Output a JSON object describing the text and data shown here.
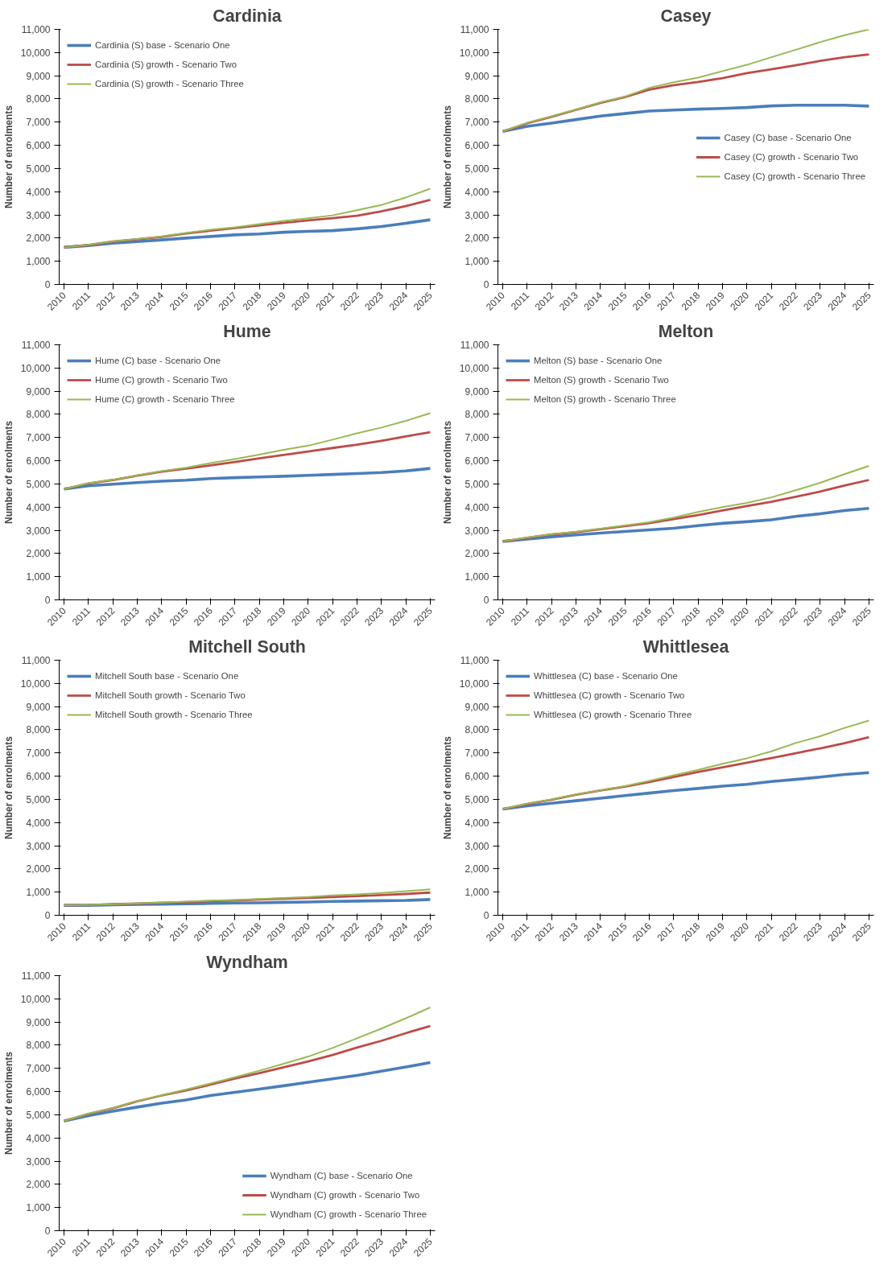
{
  "chart_data": [
    {
      "type": "line",
      "title": "Cardinia",
      "ylabel": "Number of enrolments",
      "legend": "top left",
      "grid": false,
      "categories": [
        "2010",
        "2011",
        "2012",
        "2013",
        "2014",
        "2015",
        "2016",
        "2017",
        "2018",
        "2019",
        "2020",
        "2021",
        "2022",
        "2023",
        "2024",
        "2025"
      ],
      "ylim": [
        0,
        11000
      ],
      "yticks": [
        0,
        {
          "value": 1000,
          "label": "1,000"
        },
        {
          "value": 2000,
          "label": "2,000"
        },
        {
          "value": 3000,
          "label": "3,000"
        },
        {
          "value": 4000,
          "label": "4,000"
        },
        {
          "value": 5000,
          "label": "5,000"
        },
        {
          "value": 6000,
          "label": "6,000"
        },
        {
          "value": 7000,
          "label": "7,000"
        },
        {
          "value": 8000,
          "label": "8,000"
        },
        {
          "value": 9000,
          "label": "9,000"
        },
        {
          "value": 10000,
          "label": "10,000"
        },
        {
          "value": 11000,
          "label": "11,000"
        }
      ],
      "series": [
        {
          "name": "Cardinia (S) base - Scenario One",
          "color": "#4a7ebb",
          "values": [
            1600,
            1680,
            1780,
            1850,
            1920,
            2000,
            2070,
            2140,
            2180,
            2250,
            2290,
            2320,
            2400,
            2500,
            2640,
            2790
          ]
        },
        {
          "name": "Cardinia (S) growth - Scenario Two",
          "color": "#be4b48",
          "values": [
            1600,
            1700,
            1850,
            1950,
            2050,
            2200,
            2320,
            2430,
            2550,
            2660,
            2760,
            2860,
            2960,
            3150,
            3380,
            3650
          ]
        },
        {
          "name": "Cardinia (S) growth - Scenario Three",
          "color": "#98b954",
          "values": [
            1600,
            1710,
            1860,
            1960,
            2070,
            2220,
            2360,
            2460,
            2600,
            2740,
            2850,
            2980,
            3200,
            3430,
            3750,
            4130
          ]
        }
      ]
    },
    {
      "type": "line",
      "title": "Casey",
      "ylabel": "Number of enrolments",
      "legend": "right",
      "grid": false,
      "categories": [
        "2010",
        "2011",
        "2012",
        "2013",
        "2014",
        "2015",
        "2016",
        "2017",
        "2018",
        "2019",
        "2020",
        "2021",
        "2022",
        "2023",
        "2024",
        "2025"
      ],
      "ylim": [
        0,
        11000
      ],
      "yticks": [
        0,
        {
          "value": 1000,
          "label": "1,000"
        },
        {
          "value": 2000,
          "label": "2,000"
        },
        {
          "value": 3000,
          "label": "3,000"
        },
        {
          "value": 4000,
          "label": "4,000"
        },
        {
          "value": 5000,
          "label": "5,000"
        },
        {
          "value": 6000,
          "label": "6,000"
        },
        {
          "value": 7000,
          "label": "7,000"
        },
        {
          "value": 8000,
          "label": "8,000"
        },
        {
          "value": 9000,
          "label": "9,000"
        },
        {
          "value": 10000,
          "label": "10,000"
        },
        {
          "value": 11000,
          "label": "11,000"
        }
      ],
      "series": [
        {
          "name": "Casey (C) base - Scenario One",
          "color": "#4a7ebb",
          "values": [
            6600,
            6820,
            6960,
            7110,
            7260,
            7370,
            7480,
            7520,
            7560,
            7590,
            7630,
            7700,
            7730,
            7730,
            7730,
            7690
          ]
        },
        {
          "name": "Casey (C) growth - Scenario Two",
          "color": "#be4b48",
          "values": [
            6600,
            6950,
            7230,
            7530,
            7830,
            8080,
            8400,
            8590,
            8730,
            8900,
            9110,
            9280,
            9450,
            9640,
            9800,
            9920
          ]
        },
        {
          "name": "Casey (C) growth - Scenario Three",
          "color": "#98b954",
          "values": [
            6600,
            6970,
            7250,
            7550,
            7850,
            8100,
            8480,
            8720,
            8920,
            9200,
            9470,
            9800,
            10120,
            10450,
            10750,
            11000
          ]
        }
      ]
    },
    {
      "type": "line",
      "title": "Hume",
      "ylabel": "Number of enrolments",
      "legend": "top left",
      "grid": false,
      "categories": [
        "2010",
        "2011",
        "2012",
        "2013",
        "2014",
        "2015",
        "2016",
        "2017",
        "2018",
        "2019",
        "2020",
        "2021",
        "2022",
        "2023",
        "2024",
        "2025"
      ],
      "ylim": [
        0,
        11000
      ],
      "yticks": [
        0,
        {
          "value": 1000,
          "label": "1,000"
        },
        {
          "value": 2000,
          "label": "2,000"
        },
        {
          "value": 3000,
          "label": "3,000"
        },
        {
          "value": 4000,
          "label": "4,000"
        },
        {
          "value": 5000,
          "label": "5,000"
        },
        {
          "value": 6000,
          "label": "6,000"
        },
        {
          "value": 7000,
          "label": "7,000"
        },
        {
          "value": 8000,
          "label": "8,000"
        },
        {
          "value": 9000,
          "label": "9,000"
        },
        {
          "value": 10000,
          "label": "10,000"
        },
        {
          "value": 11000,
          "label": "11,000"
        }
      ],
      "series": [
        {
          "name": "Hume (C) base - Scenario One",
          "color": "#4a7ebb",
          "values": [
            4780,
            4920,
            4990,
            5060,
            5120,
            5160,
            5230,
            5270,
            5300,
            5330,
            5370,
            5410,
            5450,
            5490,
            5560,
            5670
          ]
        },
        {
          "name": "Hume (C) growth - Scenario Two",
          "color": "#be4b48",
          "values": [
            4780,
            5020,
            5170,
            5360,
            5530,
            5660,
            5800,
            5950,
            6100,
            6250,
            6400,
            6550,
            6690,
            6860,
            7050,
            7230
          ]
        },
        {
          "name": "Hume (C) growth - Scenario Three",
          "color": "#98b954",
          "values": [
            4780,
            5030,
            5180,
            5370,
            5550,
            5700,
            5900,
            6070,
            6260,
            6470,
            6650,
            6910,
            7180,
            7430,
            7720,
            8050
          ]
        }
      ]
    },
    {
      "type": "line",
      "title": "Melton",
      "ylabel": "Number of enrolments",
      "legend": "top left",
      "grid": false,
      "categories": [
        "2010",
        "2011",
        "2012",
        "2013",
        "2014",
        "2015",
        "2016",
        "2017",
        "2018",
        "2019",
        "2020",
        "2021",
        "2022",
        "2023",
        "2024",
        "2025"
      ],
      "ylim": [
        0,
        11000
      ],
      "yticks": [
        0,
        {
          "value": 1000,
          "label": "1,000"
        },
        {
          "value": 2000,
          "label": "2,000"
        },
        {
          "value": 3000,
          "label": "3,000"
        },
        {
          "value": 4000,
          "label": "4,000"
        },
        {
          "value": 5000,
          "label": "5,000"
        },
        {
          "value": 6000,
          "label": "6,000"
        },
        {
          "value": 7000,
          "label": "7,000"
        },
        {
          "value": 8000,
          "label": "8,000"
        },
        {
          "value": 9000,
          "label": "9,000"
        },
        {
          "value": 10000,
          "label": "10,000"
        },
        {
          "value": 11000,
          "label": "11,000"
        }
      ],
      "series": [
        {
          "name": "Melton (S) base - Scenario One",
          "color": "#4a7ebb",
          "values": [
            2520,
            2620,
            2720,
            2800,
            2880,
            2950,
            3020,
            3090,
            3200,
            3300,
            3370,
            3450,
            3600,
            3710,
            3850,
            3950
          ]
        },
        {
          "name": "Melton (S) growth - Scenario Two",
          "color": "#be4b48",
          "values": [
            2520,
            2680,
            2820,
            2920,
            3050,
            3180,
            3310,
            3480,
            3660,
            3860,
            4050,
            4230,
            4450,
            4670,
            4930,
            5170
          ]
        },
        {
          "name": "Melton (S) growth - Scenario Three",
          "color": "#98b954",
          "values": [
            2520,
            2690,
            2830,
            2940,
            3070,
            3210,
            3350,
            3550,
            3790,
            4000,
            4180,
            4420,
            4730,
            5050,
            5420,
            5780
          ]
        }
      ]
    },
    {
      "type": "line",
      "title": "Mitchell South",
      "ylabel": "Number of enrolments",
      "legend": "top left",
      "grid": false,
      "categories": [
        "2010",
        "2011",
        "2012",
        "2013",
        "2014",
        "2015",
        "2016",
        "2017",
        "2018",
        "2019",
        "2020",
        "2021",
        "2022",
        "2023",
        "2024",
        "2025"
      ],
      "ylim": [
        0,
        11000
      ],
      "yticks": [
        0,
        {
          "value": 1000,
          "label": "1,000"
        },
        {
          "value": 2000,
          "label": "2,000"
        },
        {
          "value": 3000,
          "label": "3,000"
        },
        {
          "value": 4000,
          "label": "4,000"
        },
        {
          "value": 5000,
          "label": "5,000"
        },
        {
          "value": 6000,
          "label": "6,000"
        },
        {
          "value": 7000,
          "label": "7,000"
        },
        {
          "value": 8000,
          "label": "8,000"
        },
        {
          "value": 9000,
          "label": "9,000"
        },
        {
          "value": 10000,
          "label": "10,000"
        },
        {
          "value": 11000,
          "label": "11,000"
        }
      ],
      "series": [
        {
          "name": "Mitchell South base - Scenario One",
          "color": "#4a7ebb",
          "values": [
            430,
            430,
            450,
            470,
            480,
            500,
            510,
            530,
            540,
            560,
            570,
            600,
            610,
            630,
            640,
            680
          ]
        },
        {
          "name": "Mitchell South growth - Scenario Two",
          "color": "#be4b48",
          "values": [
            430,
            440,
            480,
            510,
            540,
            570,
            610,
            640,
            680,
            720,
            750,
            790,
            830,
            870,
            920,
            980
          ]
        },
        {
          "name": "Mitchell South growth - Scenario Three",
          "color": "#98b954",
          "values": [
            430,
            440,
            480,
            510,
            550,
            590,
            630,
            660,
            700,
            750,
            790,
            860,
            900,
            960,
            1040,
            1120
          ]
        }
      ]
    },
    {
      "type": "line",
      "title": "Whittlesea",
      "ylabel": "Number of enrolments",
      "legend": "top left",
      "grid": false,
      "categories": [
        "2010",
        "2011",
        "2012",
        "2013",
        "2014",
        "2015",
        "2016",
        "2017",
        "2018",
        "2019",
        "2020",
        "2021",
        "2022",
        "2023",
        "2024",
        "2025"
      ],
      "ylim": [
        0,
        11000
      ],
      "yticks": [
        0,
        {
          "value": 1000,
          "label": "1,000"
        },
        {
          "value": 2000,
          "label": "2,000"
        },
        {
          "value": 3000,
          "label": "3,000"
        },
        {
          "value": 4000,
          "label": "4,000"
        },
        {
          "value": 5000,
          "label": "5,000"
        },
        {
          "value": 6000,
          "label": "6,000"
        },
        {
          "value": 7000,
          "label": "7,000"
        },
        {
          "value": 8000,
          "label": "8,000"
        },
        {
          "value": 9000,
          "label": "9,000"
        },
        {
          "value": 10000,
          "label": "10,000"
        },
        {
          "value": 11000,
          "label": "11,000"
        }
      ],
      "series": [
        {
          "name": "Whittlesea (C) base - Scenario One",
          "color": "#4a7ebb",
          "values": [
            4580,
            4720,
            4830,
            4940,
            5050,
            5160,
            5270,
            5380,
            5470,
            5570,
            5650,
            5770,
            5860,
            5960,
            6070,
            6150
          ]
        },
        {
          "name": "Whittlesea (C) growth - Scenario Two",
          "color": "#be4b48",
          "values": [
            4580,
            4800,
            4980,
            5200,
            5380,
            5550,
            5750,
            5960,
            6180,
            6380,
            6580,
            6780,
            6990,
            7200,
            7420,
            7680
          ]
        },
        {
          "name": "Whittlesea (C) growth - Scenario Three",
          "color": "#98b954",
          "values": [
            4580,
            4810,
            5000,
            5210,
            5390,
            5570,
            5800,
            6040,
            6270,
            6530,
            6770,
            7070,
            7430,
            7720,
            8080,
            8400
          ]
        }
      ]
    },
    {
      "type": "line",
      "title": "Wyndham",
      "ylabel": "Number of enrolments",
      "legend": "bottom right",
      "grid": false,
      "categories": [
        "2010",
        "2011",
        "2012",
        "2013",
        "2014",
        "2015",
        "2016",
        "2017",
        "2018",
        "2019",
        "2020",
        "2021",
        "2022",
        "2023",
        "2024",
        "2025"
      ],
      "ylim": [
        0,
        11000
      ],
      "yticks": [
        0,
        {
          "value": 1000,
          "label": "1,000"
        },
        {
          "value": 2000,
          "label": "2,000"
        },
        {
          "value": 3000,
          "label": "3,000"
        },
        {
          "value": 4000,
          "label": "4,000"
        },
        {
          "value": 5000,
          "label": "5,000"
        },
        {
          "value": 6000,
          "label": "6,000"
        },
        {
          "value": 7000,
          "label": "7,000"
        },
        {
          "value": 8000,
          "label": "8,000"
        },
        {
          "value": 9000,
          "label": "9,000"
        },
        {
          "value": 10000,
          "label": "10,000"
        },
        {
          "value": 11000,
          "label": "11,000"
        }
      ],
      "series": [
        {
          "name": "Wyndham (C) base - Scenario One",
          "color": "#4a7ebb",
          "values": [
            4730,
            4960,
            5150,
            5330,
            5500,
            5640,
            5830,
            5970,
            6110,
            6250,
            6400,
            6550,
            6700,
            6880,
            7060,
            7250
          ]
        },
        {
          "name": "Wyndham (C) growth - Scenario Two",
          "color": "#be4b48",
          "values": [
            4730,
            5040,
            5280,
            5580,
            5830,
            6050,
            6300,
            6560,
            6800,
            7050,
            7300,
            7580,
            7900,
            8190,
            8520,
            8830
          ]
        },
        {
          "name": "Wyndham (C) growth - Scenario Three",
          "color": "#98b954",
          "values": [
            4730,
            5050,
            5290,
            5590,
            5840,
            6090,
            6350,
            6620,
            6900,
            7200,
            7510,
            7880,
            8300,
            8720,
            9160,
            9630
          ]
        }
      ]
    }
  ]
}
